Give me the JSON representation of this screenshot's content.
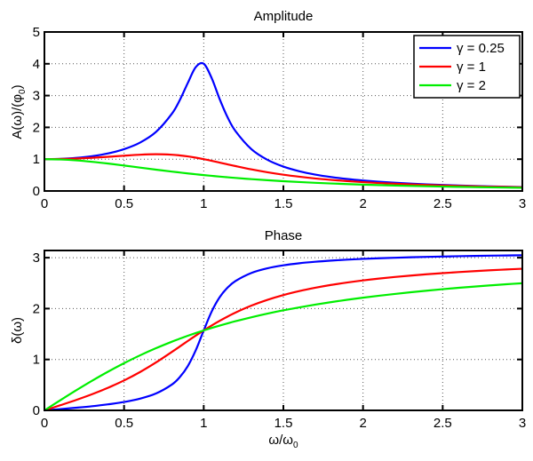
{
  "colors": {
    "gamma_0_25": "#0000ff",
    "gamma_1": "#ff0000",
    "gamma_2": "#00ee00"
  },
  "chart_data": [
    {
      "type": "line",
      "title": "Amplitude",
      "xlabel": "",
      "ylabel": "A(ω)/(φ",
      "ylabel_sub": "0",
      "ylabel_end": ")",
      "xlim": [
        0,
        3
      ],
      "ylim": [
        0,
        5
      ],
      "xticks": [
        "0",
        "0.5",
        "1",
        "1.5",
        "2",
        "2.5",
        "3"
      ],
      "xtick_values": [
        0,
        0.5,
        1,
        1.5,
        2,
        2.5,
        3
      ],
      "yticks": [
        "0",
        "1",
        "2",
        "3",
        "4",
        "5"
      ],
      "ytick_values": [
        0,
        1,
        2,
        3,
        4,
        5
      ],
      "grid": true,
      "legend": {
        "placement": "top-right",
        "entries": [
          "γ = 0.25",
          "γ = 1",
          "γ = 2"
        ]
      },
      "x": [
        0,
        0.1,
        0.2,
        0.3,
        0.4,
        0.5,
        0.6,
        0.7,
        0.8,
        0.85,
        0.9,
        0.95,
        1,
        1.05,
        1.1,
        1.15,
        1.2,
        1.3,
        1.4,
        1.5,
        1.6,
        1.7,
        1.8,
        1.9,
        2.0,
        2.1,
        2.2,
        2.3,
        2.4,
        2.5,
        2.6,
        2.7,
        2.8,
        2.9,
        3.0
      ],
      "series": [
        {
          "name": "γ = 0.25",
          "color": "#0000ff",
          "values": [
            1,
            1.01,
            1.04,
            1.095,
            1.182,
            1.315,
            1.521,
            1.855,
            2.428,
            2.861,
            3.396,
            3.895,
            4.0,
            3.549,
            2.89,
            2.314,
            1.878,
            1.311,
            0.979,
            0.766,
            0.621,
            0.516,
            0.438,
            0.377,
            0.329,
            0.29,
            0.258,
            0.231,
            0.208,
            0.189,
            0.173,
            0.158,
            0.145,
            0.134,
            0.124
          ]
        },
        {
          "name": "γ = 1",
          "color": "#ff0000",
          "values": [
            1,
            1.005,
            1.02,
            1.044,
            1.075,
            1.109,
            1.14,
            1.155,
            1.14,
            1.118,
            1.087,
            1.047,
            1.0,
            0.948,
            0.893,
            0.837,
            0.782,
            0.679,
            0.589,
            0.512,
            0.448,
            0.393,
            0.348,
            0.31,
            0.277,
            0.25,
            0.226,
            0.205,
            0.188,
            0.172,
            0.158,
            0.146,
            0.135,
            0.126,
            0.117
          ]
        },
        {
          "name": "γ = 2",
          "color": "#00ee00",
          "values": [
            1,
            0.99,
            0.962,
            0.917,
            0.862,
            0.8,
            0.735,
            0.671,
            0.61,
            0.581,
            0.552,
            0.526,
            0.5,
            0.476,
            0.452,
            0.431,
            0.41,
            0.372,
            0.338,
            0.308,
            0.281,
            0.257,
            0.236,
            0.217,
            0.2,
            0.185,
            0.171,
            0.159,
            0.148,
            0.138,
            0.129,
            0.121,
            0.113,
            0.106,
            0.1
          ]
        }
      ]
    },
    {
      "type": "line",
      "title": "Phase",
      "xlabel": "ω/ω",
      "xlabel_sub": "0",
      "ylabel": "δ(ω)",
      "xlim": [
        0,
        3
      ],
      "ylim": [
        0,
        3.1416
      ],
      "xticks": [
        "0",
        "0.5",
        "1",
        "1.5",
        "2",
        "2.5",
        "3"
      ],
      "xtick_values": [
        0,
        0.5,
        1,
        1.5,
        2,
        2.5,
        3
      ],
      "yticks": [
        "0",
        "1",
        "2",
        "3"
      ],
      "ytick_values": [
        0,
        1,
        2,
        3
      ],
      "grid": true,
      "x": [
        0,
        0.1,
        0.2,
        0.3,
        0.4,
        0.5,
        0.6,
        0.7,
        0.8,
        0.85,
        0.9,
        0.95,
        1,
        1.05,
        1.1,
        1.15,
        1.2,
        1.3,
        1.4,
        1.5,
        1.6,
        1.7,
        1.8,
        1.9,
        2.0,
        2.1,
        2.2,
        2.3,
        2.4,
        2.5,
        2.6,
        2.7,
        2.8,
        2.9,
        3.0
      ],
      "series": [
        {
          "name": "γ = 0.25",
          "color": "#0000ff",
          "values": [
            0,
            0.025,
            0.052,
            0.082,
            0.119,
            0.165,
            0.23,
            0.331,
            0.507,
            0.654,
            0.87,
            1.181,
            1.571,
            1.943,
            2.223,
            2.413,
            2.543,
            2.701,
            2.792,
            2.85,
            2.891,
            2.92,
            2.943,
            2.962,
            2.977,
            2.989,
            2.999,
            3.008,
            3.016,
            3.023,
            3.029,
            3.035,
            3.04,
            3.044,
            3.048
          ]
        },
        {
          "name": "γ = 1",
          "color": "#ff0000",
          "values": [
            0,
            0.101,
            0.205,
            0.318,
            0.445,
            0.588,
            0.753,
            0.941,
            1.148,
            1.255,
            1.363,
            1.469,
            1.571,
            1.668,
            1.759,
            1.844,
            1.923,
            2.059,
            2.172,
            2.266,
            2.344,
            2.409,
            2.465,
            2.512,
            2.554,
            2.59,
            2.621,
            2.649,
            2.675,
            2.697,
            2.717,
            2.736,
            2.753,
            2.768,
            2.783
          ]
        },
        {
          "name": "γ = 2",
          "color": "#00ee00",
          "values": [
            0,
            0.199,
            0.395,
            0.583,
            0.761,
            0.927,
            1.081,
            1.221,
            1.349,
            1.409,
            1.466,
            1.52,
            1.571,
            1.62,
            1.666,
            1.71,
            1.752,
            1.83,
            1.901,
            1.966,
            2.024,
            2.078,
            2.127,
            2.173,
            2.214,
            2.253,
            2.288,
            2.321,
            2.352,
            2.381,
            2.408,
            2.433,
            2.456,
            2.478,
            2.498
          ]
        }
      ]
    }
  ]
}
